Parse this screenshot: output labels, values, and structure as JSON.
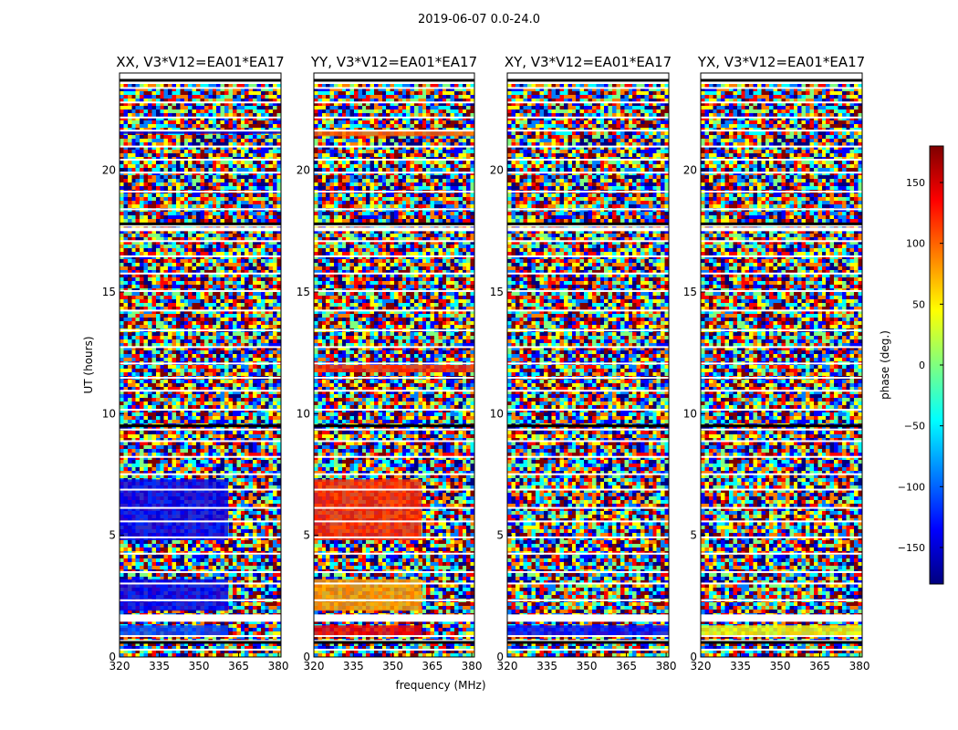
{
  "figure": {
    "suptitle": "2019-06-07 0.0-24.0",
    "xlabel": "frequency (MHz)",
    "ylabel": "UT (hours)",
    "colorbar_label": "phase (deg.)",
    "colorbar_ticks": [
      150,
      100,
      50,
      0,
      -50,
      -100,
      -150
    ],
    "colorbar_range": [
      -180,
      180
    ],
    "colormap": "jet",
    "colors": {
      "jet": [
        "#00007f",
        "#0000ff",
        "#007fff",
        "#00ffff",
        "#7fff7f",
        "#ffff00",
        "#ff7f00",
        "#ff0000",
        "#7f0000"
      ],
      "flagged": "#ffffff",
      "edge": "#000000"
    }
  },
  "chart_data": [
    {
      "type": "heatmap",
      "title": "XX, V3*V12=EA01*EA17",
      "xlim": [
        320,
        381
      ],
      "ylim": [
        0,
        24
      ],
      "xticks": [
        320,
        335,
        350,
        365,
        380
      ],
      "yticks": [
        0,
        5,
        10,
        15,
        20
      ],
      "coherent_regions": [
        {
          "ut": [
            0.9,
            1.3
          ],
          "freq": [
            320,
            361
          ],
          "phase": -110
        },
        {
          "ut": [
            1.9,
            3.2
          ],
          "freq": [
            320,
            361
          ],
          "phase": -140
        },
        {
          "ut": [
            4.8,
            7.3
          ],
          "freq": [
            320,
            361
          ],
          "phase": -140
        },
        {
          "ut": [
            21.5,
            21.65
          ],
          "freq": [
            320,
            381
          ],
          "phase": -150
        }
      ]
    },
    {
      "type": "heatmap",
      "title": "YY, V3*V12=EA01*EA17",
      "xlim": [
        320,
        381
      ],
      "ylim": [
        0,
        24
      ],
      "xticks": [
        320,
        335,
        350,
        365,
        380
      ],
      "yticks": [
        0,
        5,
        10,
        15,
        20
      ],
      "coherent_regions": [
        {
          "ut": [
            0.9,
            1.3
          ],
          "freq": [
            320,
            361
          ],
          "phase": 140
        },
        {
          "ut": [
            1.9,
            3.2
          ],
          "freq": [
            320,
            361
          ],
          "phase": 80
        },
        {
          "ut": [
            4.8,
            7.3
          ],
          "freq": [
            320,
            361
          ],
          "phase": 120
        },
        {
          "ut": [
            11.7,
            12.0
          ],
          "freq": [
            320,
            381
          ],
          "phase": 120
        },
        {
          "ut": [
            21.4,
            21.6
          ],
          "freq": [
            320,
            381
          ],
          "phase": 100
        }
      ]
    },
    {
      "type": "heatmap",
      "title": "XY, V3*V12=EA01*EA17",
      "xlim": [
        320,
        381
      ],
      "ylim": [
        0,
        24
      ],
      "xticks": [
        320,
        335,
        350,
        365,
        380
      ],
      "yticks": [
        0,
        5,
        10,
        15,
        20
      ],
      "coherent_regions": [
        {
          "ut": [
            0.9,
            1.3
          ],
          "freq": [
            320,
            381
          ],
          "phase": -130
        }
      ]
    },
    {
      "type": "heatmap",
      "title": "YX, V3*V12=EA01*EA17",
      "xlim": [
        320,
        381
      ],
      "ylim": [
        0,
        24
      ],
      "xticks": [
        320,
        335,
        350,
        365,
        380
      ],
      "yticks": [
        0,
        5,
        10,
        15,
        20
      ],
      "coherent_regions": [
        {
          "ut": [
            0.9,
            1.3
          ],
          "freq": [
            320,
            381
          ],
          "phase": 40
        }
      ]
    }
  ]
}
